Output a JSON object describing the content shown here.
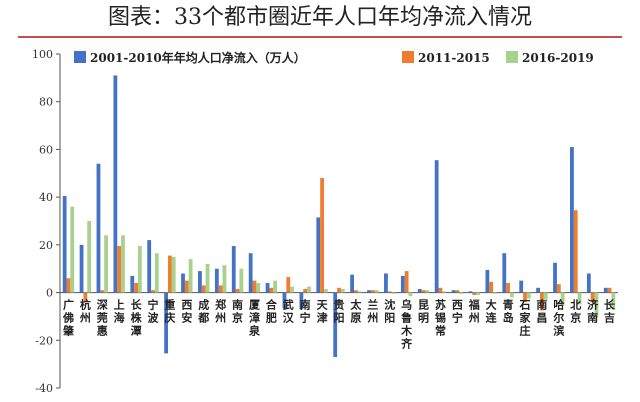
{
  "chart_data": {
    "type": "bar",
    "title": "图表：33个都市圈近年人口年均净流入情况",
    "ylim": [
      -40,
      100
    ],
    "yticks": [
      -40,
      -20,
      0,
      20,
      40,
      60,
      80,
      100
    ],
    "categories": [
      "广佛肇",
      "杭州",
      "深莞惠",
      "上海",
      "长株潭",
      "宁波",
      "重庆",
      "西安",
      "成都",
      "郑州",
      "南京",
      "厦漳泉",
      "合肥",
      "武汉",
      "南宁",
      "天津",
      "贵阳",
      "太原",
      "兰州",
      "沈阳",
      "乌鲁木齐",
      "昆明",
      "苏锡常",
      "西宁",
      "福州",
      "大连",
      "青岛",
      "石家庄",
      "南昌",
      "哈尔滨",
      "北京",
      "济南",
      "长吉"
    ],
    "series": [
      {
        "name": "2001-2010年年均人口净流入（万人）",
        "color": "#4472c4",
        "values": [
          40.5,
          20,
          54,
          91,
          7,
          22,
          -25.5,
          8,
          9,
          10,
          19.5,
          16.5,
          4,
          -6.5,
          -7,
          31.5,
          -27,
          7.5,
          1,
          8,
          7,
          1.5,
          55.5,
          1,
          0.5,
          9.5,
          16.5,
          5,
          2,
          12.5,
          61,
          8,
          2
        ]
      },
      {
        "name": "2011-2015",
        "color": "#ed7d31",
        "values": [
          6,
          -4,
          1,
          19.5,
          4,
          1,
          15.5,
          5,
          3,
          3,
          1.5,
          5,
          2,
          6.5,
          1.5,
          48,
          2,
          1,
          1,
          0.5,
          9,
          1,
          2,
          1,
          -1,
          4.5,
          4,
          -4,
          -7.5,
          3.5,
          34.5,
          -4,
          2
        ]
      },
      {
        "name": "2016-2019",
        "color": "#a9d18e",
        "values": [
          36,
          30,
          24,
          24,
          19.5,
          16.5,
          15,
          14,
          12,
          11.5,
          10,
          4,
          5,
          2.5,
          2.5,
          1.5,
          1.5,
          0.5,
          1,
          -0.5,
          -1.5,
          1,
          0.5,
          -0.5,
          -1,
          -0.5,
          -2,
          -2.5,
          -3,
          -5.5,
          -5,
          -10.5,
          -7
        ]
      }
    ],
    "grid": false,
    "legend_position": "top-right"
  }
}
